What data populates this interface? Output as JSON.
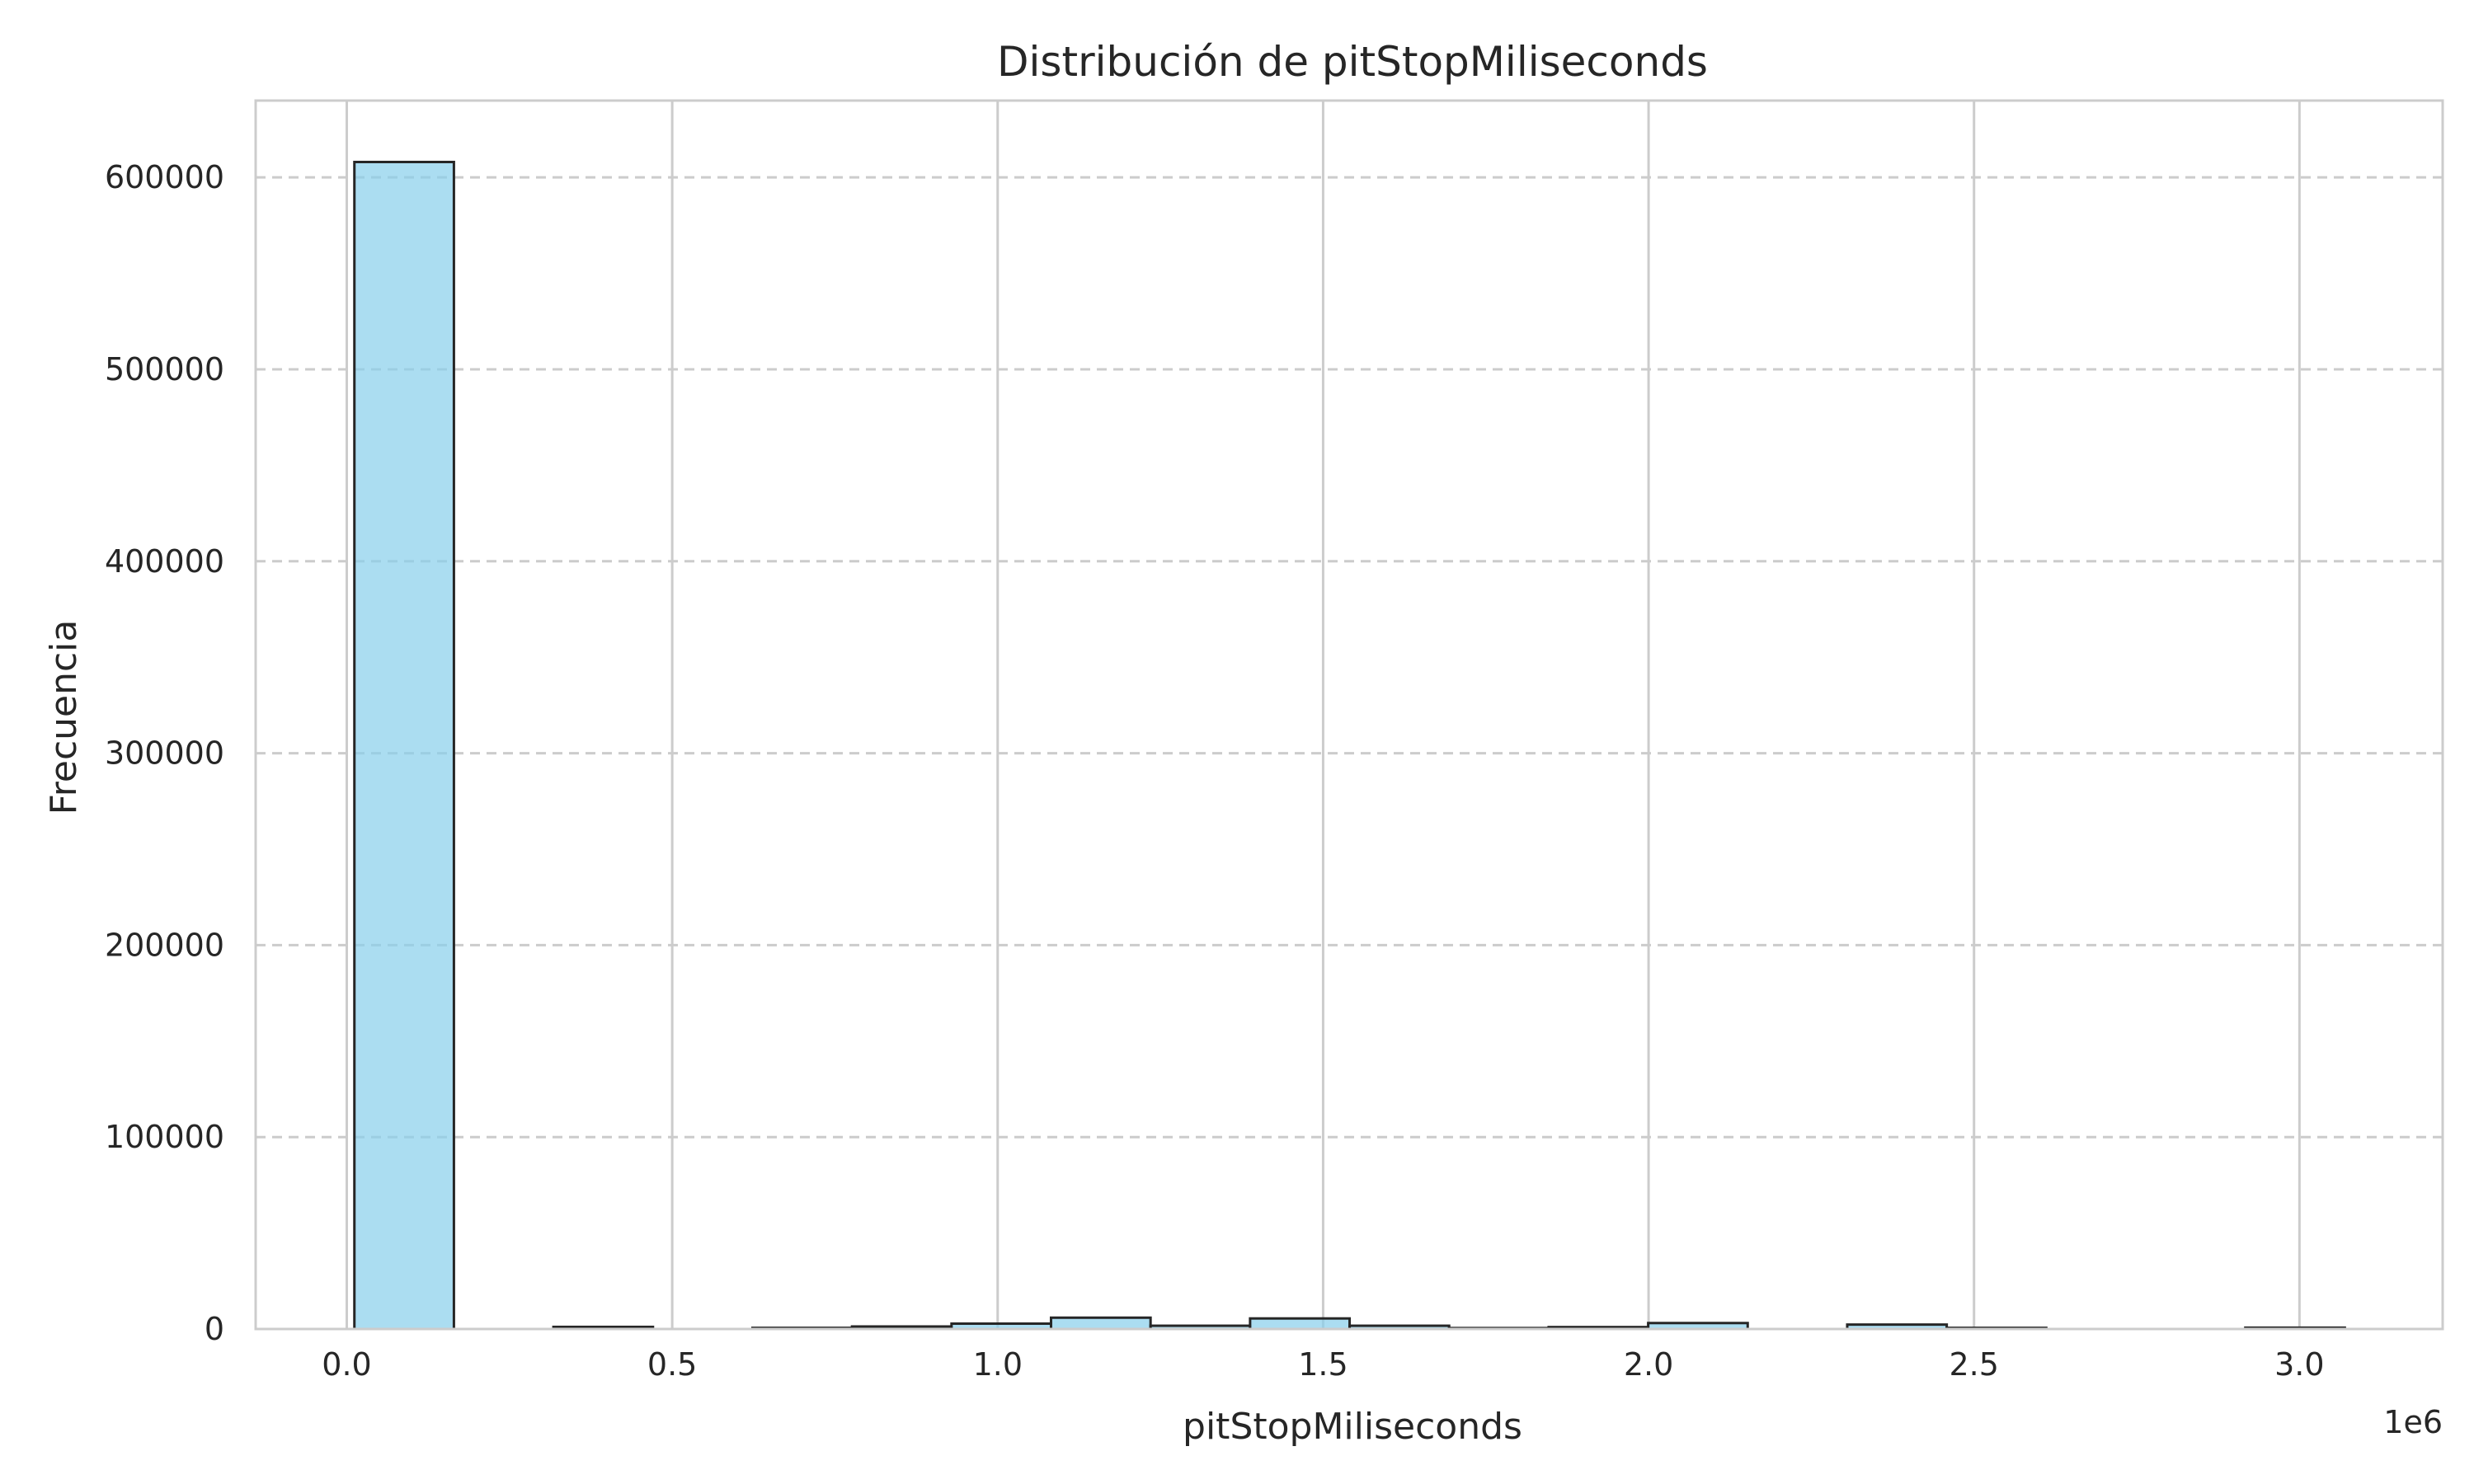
{
  "chart_data": {
    "type": "bar",
    "title": "Distribución de pitStopMiliseconds",
    "xlabel": "pitStopMiliseconds",
    "ylabel": "Frecuencia",
    "x_offset_label": "1e6",
    "xlim": [
      -0.14,
      3.22
    ],
    "ylim": [
      0,
      640000
    ],
    "x_ticks": [
      0.0,
      0.5,
      1.0,
      1.5,
      2.0,
      2.5,
      3.0
    ],
    "x_tick_labels": [
      "0.0",
      "0.5",
      "1.0",
      "1.5",
      "2.0",
      "2.5",
      "3.0"
    ],
    "y_ticks": [
      0,
      100000,
      200000,
      300000,
      400000,
      500000,
      600000
    ],
    "y_tick_labels": [
      "0",
      "100000",
      "200000",
      "300000",
      "400000",
      "500000",
      "600000"
    ],
    "bin_edges": [
      0.0117,
      0.1646,
      0.3175,
      0.4704,
      0.6233,
      0.7762,
      0.9291,
      1.082,
      1.2349,
      1.3878,
      1.5407,
      1.6936,
      1.8465,
      1.9994,
      2.1523,
      2.3052,
      2.4581,
      2.611,
      2.7639,
      2.9168,
      3.0697
    ],
    "values": [
      608000,
      0,
      1100,
      0,
      600,
      1300,
      2800,
      5900,
      1700,
      5500,
      1700,
      500,
      1000,
      3100,
      0,
      2300,
      600,
      0,
      0,
      700
    ],
    "grid": true,
    "colors": {
      "bar_fill": "#87ceeb",
      "bar_fill_opacity": 0.7,
      "bar_edge": "#262626",
      "grid": "#cccccc",
      "axes_edge": "#cccccc"
    }
  }
}
